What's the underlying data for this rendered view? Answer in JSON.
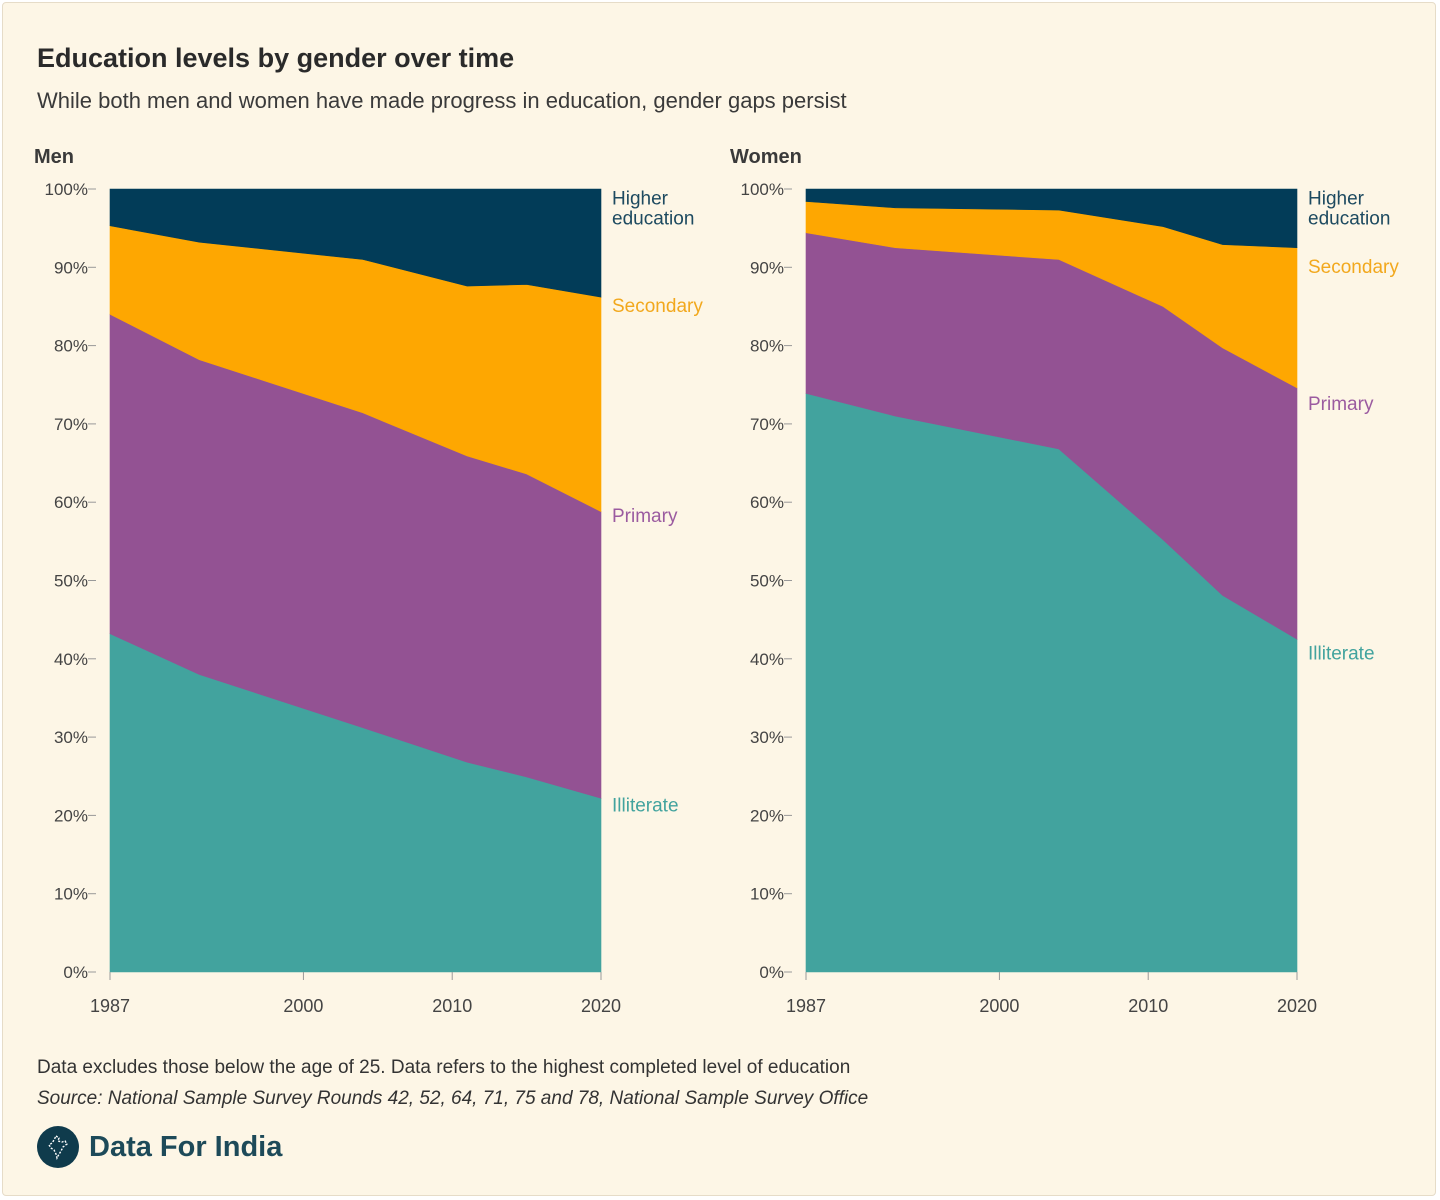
{
  "title": "Education levels by gender over time",
  "subtitle": "While both men and women have made progress in education, gender gaps persist",
  "note": "Data excludes those below the age of 25. Data refers to the highest completed level of education",
  "source": "Source: National Sample Survey Rounds 42, 52, 64, 71, 75 and 78, National Sample Survey Office",
  "brand": {
    "name": "Data For India",
    "logo_icon": "india-map-icon"
  },
  "colors": {
    "illiterate": "#42a39e",
    "primary": "#935293",
    "secondary": "#fea701",
    "higher": "#023c58",
    "label_illiterate": "#42a39e",
    "label_primary": "#9b5ba0",
    "label_secondary": "#f2a81d",
    "label_higher": "#1d4a60",
    "axis_text": "#444444",
    "panel_title": "#3a3a3a"
  },
  "chart_data": [
    {
      "type": "area",
      "stacked": true,
      "title": "Men",
      "x": [
        1987,
        1993,
        2004,
        2011,
        2015,
        2019
      ],
      "xticks": [
        1987,
        2000,
        2010,
        2020
      ],
      "xlim": [
        1987,
        2020
      ],
      "ylim": [
        0,
        100
      ],
      "yticks": [
        "0%",
        "10%",
        "20%",
        "30%",
        "40%",
        "50%",
        "60%",
        "70%",
        "80%",
        "90%",
        "100%"
      ],
      "series": [
        {
          "key": "illiterate",
          "name": "Illiterate",
          "values": [
            43.2,
            38,
            31.2,
            26.8,
            24.9,
            22.2
          ]
        },
        {
          "key": "primary",
          "name": "Primary",
          "values": [
            40.8,
            40.2,
            40.2,
            39.1,
            38.7,
            36.6
          ]
        },
        {
          "key": "secondary",
          "name": "Secondary",
          "values": [
            11.3,
            15,
            19.6,
            21.7,
            24.2,
            27.4
          ]
        },
        {
          "key": "higher",
          "name": "Higher education",
          "values": [
            4.7,
            6.8,
            9,
            12.4,
            12.2,
            13.8
          ]
        }
      ],
      "end_labels": [
        {
          "key": "higher",
          "lines": [
            "Higher",
            "education"
          ],
          "y": 98
        },
        {
          "key": "secondary",
          "lines": [
            "Secondary"
          ],
          "y": 84.3
        },
        {
          "key": "primary",
          "lines": [
            "Primary"
          ],
          "y": 57.5
        },
        {
          "key": "illiterate",
          "lines": [
            "Illiterate"
          ],
          "y": 20.5
        }
      ]
    },
    {
      "type": "area",
      "stacked": true,
      "title": "Women",
      "x": [
        1987,
        1993,
        2004,
        2011,
        2015,
        2019
      ],
      "xticks": [
        1987,
        2000,
        2010,
        2020
      ],
      "xlim": [
        1987,
        2020
      ],
      "ylim": [
        0,
        100
      ],
      "yticks": [
        "0%",
        "10%",
        "20%",
        "30%",
        "40%",
        "50%",
        "60%",
        "70%",
        "80%",
        "90%",
        "100%"
      ],
      "series": [
        {
          "key": "illiterate",
          "name": "Illiterate",
          "values": [
            73.9,
            71,
            66.8,
            55.2,
            48.1,
            42.5
          ]
        },
        {
          "key": "primary",
          "name": "Primary",
          "values": [
            20.5,
            21.5,
            24.2,
            29.8,
            31.6,
            32.1
          ]
        },
        {
          "key": "secondary",
          "name": "Secondary",
          "values": [
            4,
            5.1,
            6.3,
            10.2,
            13.2,
            17.9
          ]
        },
        {
          "key": "higher",
          "name": "Higher education",
          "values": [
            1.6,
            2.4,
            2.7,
            4.8,
            7.1,
            7.5
          ]
        }
      ],
      "end_labels": [
        {
          "key": "higher",
          "lines": [
            "Higher",
            "education"
          ],
          "y": 98
        },
        {
          "key": "secondary",
          "lines": [
            "Secondary"
          ],
          "y": 89.3
        },
        {
          "key": "primary",
          "lines": [
            "Primary"
          ],
          "y": 71.8
        },
        {
          "key": "illiterate",
          "lines": [
            "Illiterate"
          ],
          "y": 39.9
        }
      ]
    }
  ]
}
